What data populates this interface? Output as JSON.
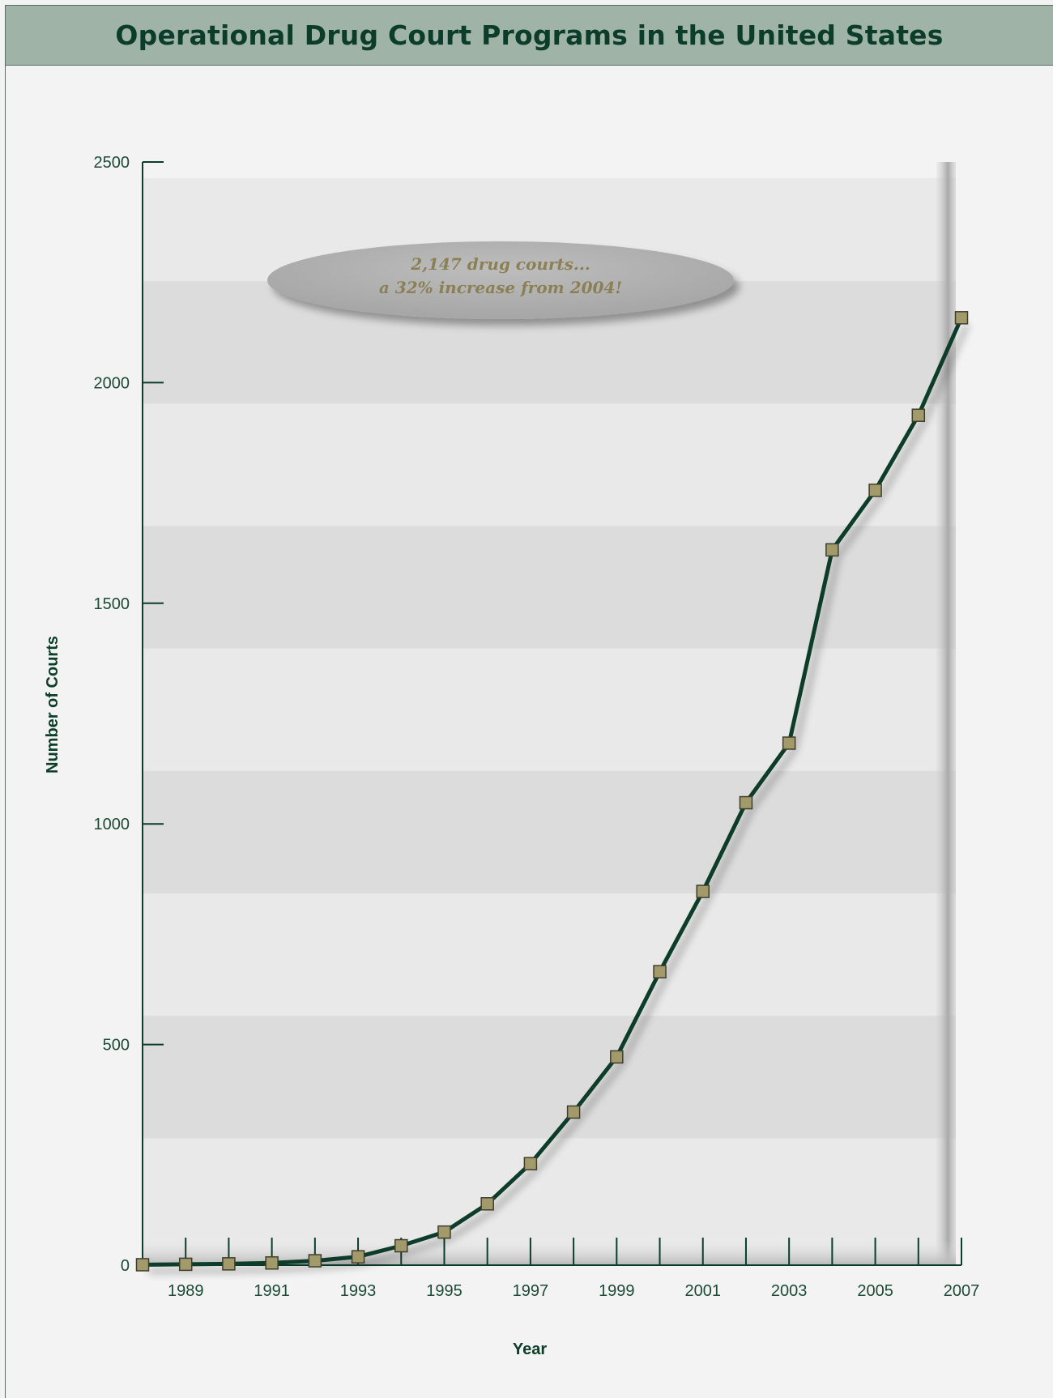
{
  "title": "Operational Drug Court Programs in the United States",
  "chart_data": {
    "type": "line",
    "xlabel": "Year",
    "ylabel": "Number of Courts",
    "ylim": [
      0,
      2500
    ],
    "yticks": [
      0,
      500,
      1000,
      1500,
      2000,
      2500
    ],
    "xticks": [
      1989,
      1991,
      1993,
      1995,
      1997,
      1999,
      2001,
      2003,
      2005,
      2007
    ],
    "x": [
      1988,
      1989,
      1990,
      1991,
      1992,
      1993,
      1994,
      1995,
      1996,
      1997,
      1998,
      1999,
      2000,
      2001,
      2002,
      2003,
      2004,
      2005,
      2006,
      2007
    ],
    "series": [
      {
        "values": [
          1,
          2,
          3,
          5,
          10,
          19,
          44,
          75,
          139,
          230,
          347,
          472,
          665,
          847,
          1048,
          1183,
          1621,
          1756,
          1926,
          2147
        ]
      }
    ],
    "grid": false,
    "annotation": {
      "line1": "2,147 drug courts...",
      "line2": "a 32% increase from 2004!"
    },
    "colors": {
      "line": "#0b3d2a",
      "marker_fill": "#a39a6c",
      "marker_stroke": "#3e3e2c",
      "axis": "#0b3d2a",
      "band_light": "#e9e9e9",
      "band_dark": "#dcdcdc"
    }
  }
}
